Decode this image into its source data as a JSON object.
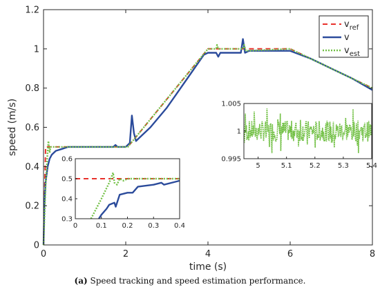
{
  "caption": {
    "label": "(a)",
    "text": "Speed tracking and speed estimation performance."
  },
  "chart_data": {
    "type": "line",
    "xlabel": "time (s)",
    "ylabel": "speed (m/s)",
    "xlim": [
      0,
      8
    ],
    "ylim": [
      0,
      1.2
    ],
    "xticks": [
      0,
      2,
      4,
      6,
      8
    ],
    "yticks": [
      0,
      0.2,
      0.4,
      0.6,
      0.8,
      1,
      1.2
    ],
    "grid": false,
    "legend_position": "top-right",
    "series": [
      {
        "name": "v_ref",
        "label_main": "v",
        "label_sub": "ref",
        "color": "#e8302a",
        "style": "dashed",
        "x": [
          0,
          0.05,
          2.05,
          4,
          6,
          8
        ],
        "y": [
          0,
          0.5,
          0.5,
          1.0,
          1.0,
          0.8
        ]
      },
      {
        "name": "v",
        "label_main": "v",
        "label_sub": "",
        "color": "#2b4b9b",
        "style": "solid",
        "x": [
          0,
          0.02,
          0.05,
          0.1,
          0.15,
          0.2,
          0.3,
          0.45,
          0.6,
          1.0,
          1.5,
          1.7,
          1.75,
          1.8,
          2.0,
          2.1,
          2.15,
          2.2,
          2.25,
          2.3,
          2.6,
          3.0,
          3.5,
          3.9,
          4.0,
          4.2,
          4.25,
          4.3,
          4.8,
          4.85,
          4.9,
          5.0,
          5.5,
          6.0,
          6.5,
          7.0,
          7.5,
          8.0
        ],
        "y": [
          0,
          0.2,
          0.32,
          0.4,
          0.44,
          0.46,
          0.48,
          0.49,
          0.5,
          0.5,
          0.5,
          0.5,
          0.51,
          0.5,
          0.5,
          0.52,
          0.66,
          0.57,
          0.53,
          0.54,
          0.6,
          0.7,
          0.85,
          0.97,
          0.98,
          0.98,
          0.96,
          0.98,
          0.98,
          1.05,
          0.98,
          0.99,
          0.99,
          0.99,
          0.95,
          0.9,
          0.85,
          0.79
        ]
      },
      {
        "name": "v_est",
        "label_main": "v",
        "label_sub": "est",
        "color": "#72c045",
        "style": "dotted",
        "x": [
          0,
          0.05,
          0.1,
          0.12,
          0.15,
          0.17,
          0.2,
          0.3,
          2.05,
          4,
          4.2,
          4.22,
          4.25,
          4.85,
          4.88,
          4.92,
          6,
          8
        ],
        "y": [
          0,
          0.3,
          0.48,
          0.53,
          0.47,
          0.5,
          0.5,
          0.5,
          0.5,
          1.0,
          1.0,
          1.02,
          1.0,
          1.0,
          1.02,
          0.99,
          1.0,
          0.8
        ]
      }
    ],
    "insets": [
      {
        "id": "inset-left",
        "xlim": [
          0,
          0.4
        ],
        "ylim": [
          0.3,
          0.6
        ],
        "xticks": [
          0,
          0.1,
          0.2,
          0.3,
          0.4
        ],
        "yticks": [
          0.3,
          0.4,
          0.5,
          0.6
        ],
        "series": [
          {
            "name": "v_ref",
            "color": "#e8302a",
            "style": "dashed",
            "x": [
              0,
              0.4
            ],
            "y": [
              0.5,
              0.5
            ]
          },
          {
            "name": "v",
            "color": "#2b4b9b",
            "style": "solid",
            "x": [
              0.09,
              0.1,
              0.12,
              0.13,
              0.15,
              0.155,
              0.17,
              0.2,
              0.22,
              0.24,
              0.3,
              0.33,
              0.34,
              0.4
            ],
            "y": [
              0.3,
              0.32,
              0.35,
              0.37,
              0.38,
              0.36,
              0.42,
              0.43,
              0.43,
              0.46,
              0.47,
              0.48,
              0.47,
              0.49
            ]
          },
          {
            "name": "v_est",
            "color": "#72c045",
            "style": "dotted",
            "x": [
              0.06,
              0.1,
              0.13,
              0.145,
              0.15,
              0.16,
              0.17,
              0.185,
              0.2,
              0.4
            ],
            "y": [
              0.3,
              0.4,
              0.48,
              0.53,
              0.48,
              0.47,
              0.5,
              0.49,
              0.5,
              0.5
            ]
          }
        ]
      },
      {
        "id": "inset-right",
        "xlim": [
          4.95,
          5.4
        ],
        "ylim": [
          0.995,
          1.005
        ],
        "xticks": [
          5,
          5.1,
          5.2,
          5.3,
          5.4
        ],
        "yticks": [
          0.995,
          1,
          1.005
        ],
        "tick_labels_y": [
          "0.995",
          "1",
          "1.005"
        ],
        "series": [
          {
            "name": "v_est",
            "color": "#72c045",
            "style": "noisy",
            "center": 1.0,
            "amplitude": 0.0019
          }
        ]
      }
    ]
  }
}
